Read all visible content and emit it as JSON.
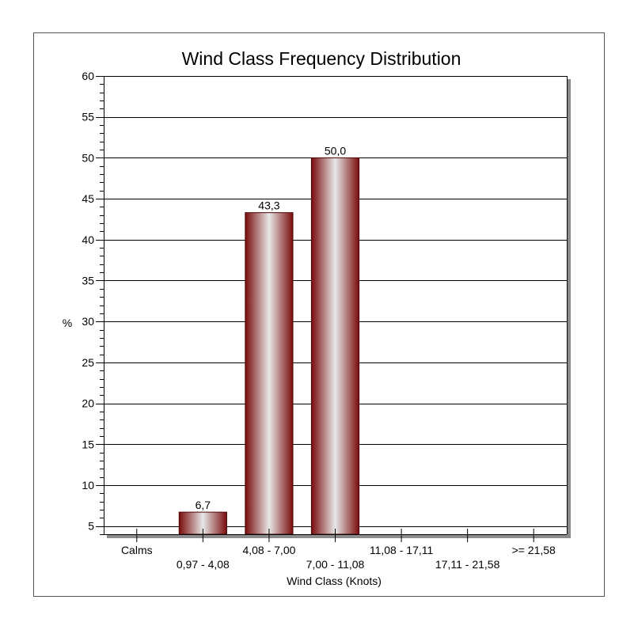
{
  "chart_data": {
    "type": "bar",
    "title": "Wind Class Frequency Distribution",
    "xlabel": "Wind Class (Knots)",
    "ylabel": "%",
    "categories": [
      "Calms",
      "0,97 - 4,08",
      "4,08 - 7,00",
      "7,00 - 11,08",
      "11,08 - 17,11",
      "17,11 - 21,58",
      ">= 21,58"
    ],
    "values": [
      null,
      6.7,
      43.3,
      50.0,
      null,
      null,
      null
    ],
    "data_labels": [
      "",
      "6,7",
      "43,3",
      "50,0",
      "",
      "",
      ""
    ],
    "ylim": [
      4,
      60
    ],
    "yticks": [
      5,
      10,
      15,
      20,
      25,
      30,
      35,
      40,
      45,
      50,
      55,
      60
    ],
    "grid": true,
    "colors": {
      "bar_dark": "#7a0c0c",
      "bar_light": "#e8e8e8",
      "bar_edge": "#4a0505",
      "grid": "#000000"
    }
  }
}
